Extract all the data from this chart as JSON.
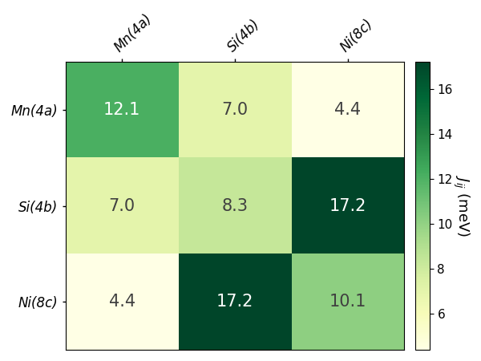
{
  "labels": [
    "Mn(4a)",
    "Si(4b)",
    "Ni(8c)"
  ],
  "matrix": [
    [
      12.1,
      7.0,
      4.4
    ],
    [
      7.0,
      8.3,
      17.2
    ],
    [
      4.4,
      17.2,
      10.1
    ]
  ],
  "vmin": 4.4,
  "vmax": 17.2,
  "cmap": "YlGn",
  "colorbar_label": "$J_{ij}$ (meV)",
  "colorbar_ticks": [
    6,
    8,
    10,
    12,
    14,
    16
  ],
  "text_threshold": 11.0,
  "text_color_dark": "white",
  "text_color_light": "#404040",
  "fontsize_cell": 15,
  "fontsize_tick": 12,
  "fontsize_cbar": 13,
  "bg_color": "white",
  "figure_width": 6.0,
  "figure_height": 4.5
}
